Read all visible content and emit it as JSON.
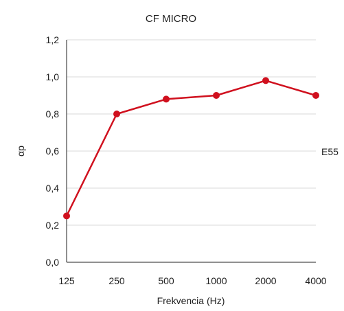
{
  "chart_data": {
    "type": "line",
    "title": "CF MICRO",
    "xlabel": "Frekvencia (Hz)",
    "ylabel": "αp",
    "categories": [
      "125",
      "250",
      "500",
      "1000",
      "2000",
      "4000"
    ],
    "series": [
      {
        "name": "E55",
        "values": [
          0.25,
          0.8,
          0.88,
          0.9,
          0.98,
          0.9
        ],
        "color": "#d0101e"
      }
    ],
    "ylim": [
      0,
      1.2
    ],
    "yticks": [
      "0,0",
      "0,2",
      "0,4",
      "0,6",
      "0,8",
      "1,0",
      "1,2"
    ],
    "grid": true,
    "legend": "right"
  }
}
